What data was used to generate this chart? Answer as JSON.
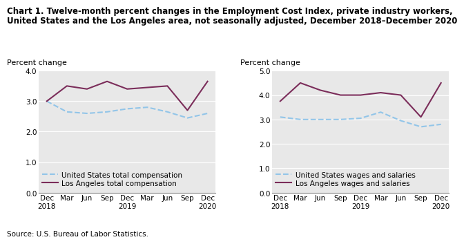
{
  "title_line1": "Chart 1. Twelve-month percent changes in the Employment Cost Index, private industry workers,",
  "title_line2": "United States and the Los Angeles area, not seasonally adjusted, December 2018–December 2020",
  "source": "Source: U.S. Bureau of Labor Statistics.",
  "x_labels": [
    "Dec\n2018",
    "Mar",
    "Jun",
    "Sep",
    "Dec\n2019",
    "Mar",
    "Jun",
    "Sep",
    "Dec\n2020"
  ],
  "left_chart": {
    "ylabel": "Percent change",
    "ylim": [
      0.0,
      4.0
    ],
    "yticks": [
      0.0,
      1.0,
      2.0,
      3.0,
      4.0
    ],
    "us_total_comp": [
      3.0,
      2.65,
      2.6,
      2.65,
      2.75,
      2.8,
      2.65,
      2.45,
      2.6
    ],
    "la_total_comp": [
      3.0,
      3.5,
      3.4,
      3.65,
      3.4,
      3.45,
      3.5,
      2.7,
      3.65
    ],
    "us_label": "United States total compensation",
    "la_label": "Los Angeles total compensation"
  },
  "right_chart": {
    "ylabel": "Percent change",
    "ylim": [
      0.0,
      5.0
    ],
    "yticks": [
      0.0,
      1.0,
      2.0,
      3.0,
      4.0,
      5.0
    ],
    "us_wages": [
      3.1,
      3.0,
      3.0,
      3.0,
      3.05,
      3.3,
      2.95,
      2.7,
      2.8
    ],
    "la_wages": [
      3.75,
      4.5,
      4.2,
      4.0,
      4.0,
      4.1,
      4.0,
      3.1,
      4.5
    ],
    "us_label": "United States wages and salaries",
    "la_label": "Los Angeles wages and salaries"
  },
  "us_color": "#92C5E8",
  "la_color": "#7B2D5A",
  "linewidth": 1.5,
  "background_color": "#E8E8E8",
  "grid_color": "#FFFFFF",
  "title_fontsize": 8.5,
  "label_fontsize": 8,
  "tick_fontsize": 7.5,
  "legend_fontsize": 7.5
}
